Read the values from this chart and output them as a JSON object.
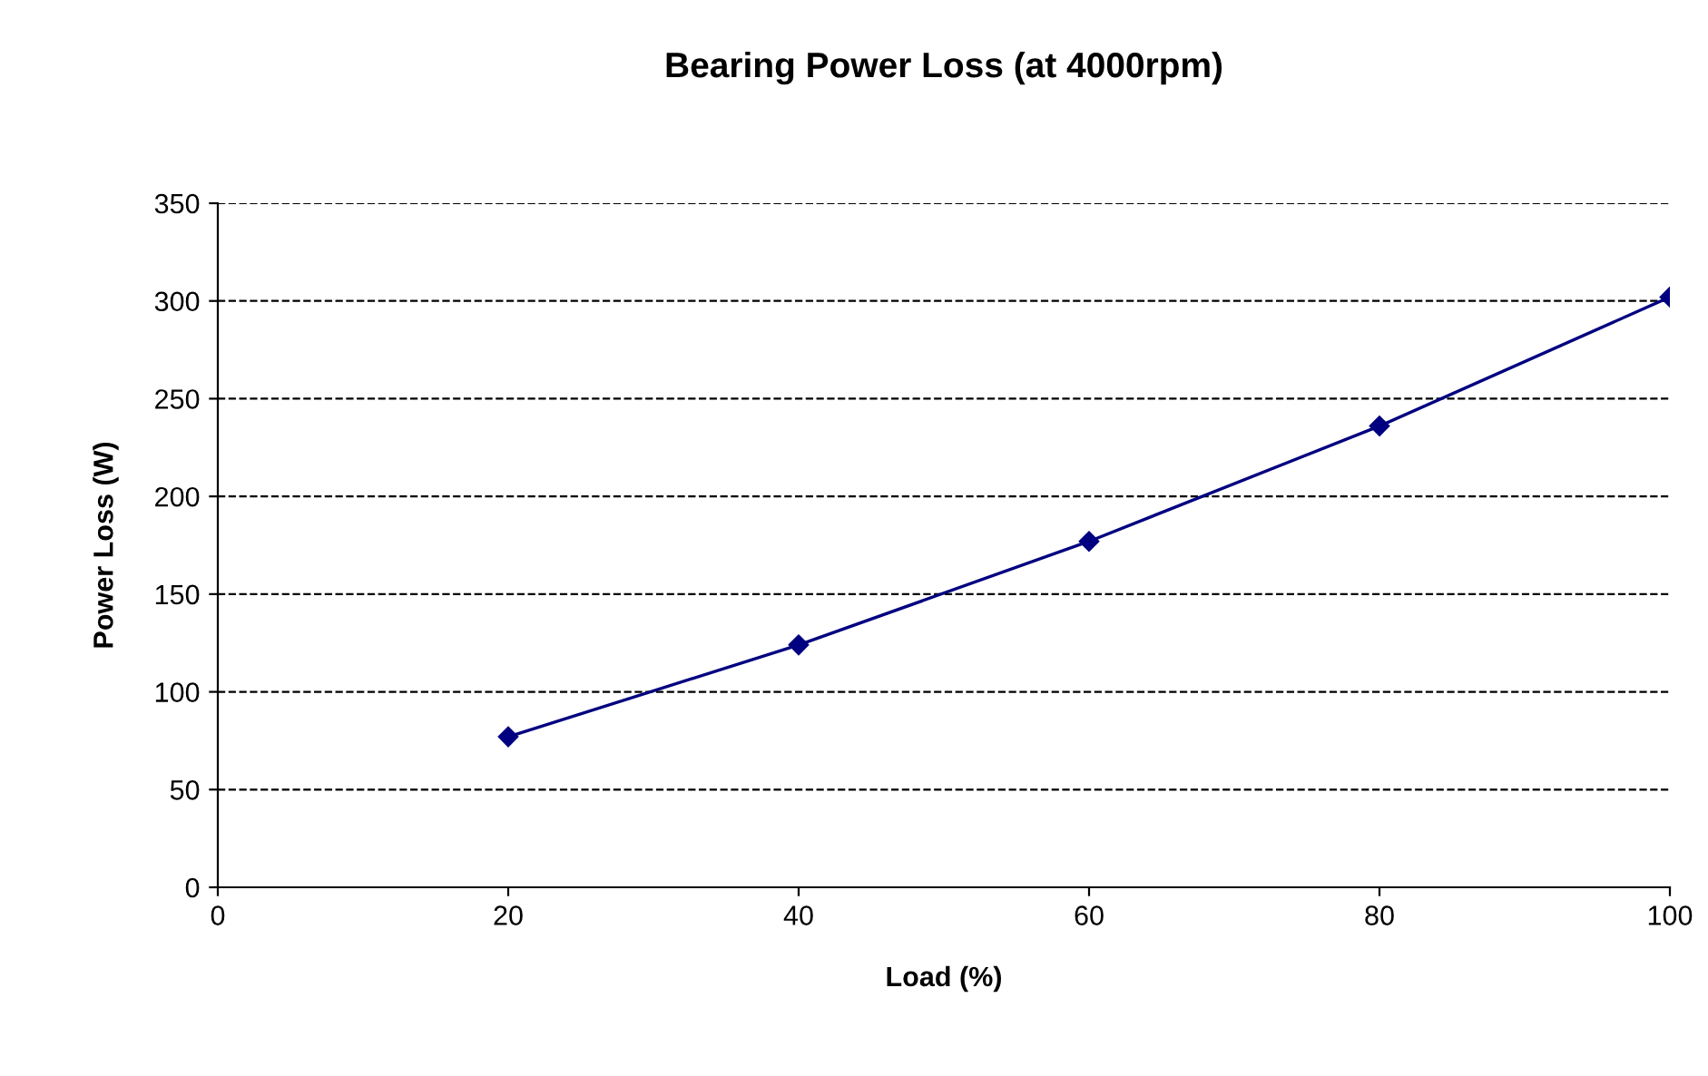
{
  "chart_data": {
    "type": "line",
    "title": "Bearing Power Loss (at 4000rpm)",
    "xlabel": "Load (%)",
    "ylabel": "Power Loss (W)",
    "x": [
      20,
      40,
      60,
      80,
      100
    ],
    "series": [
      {
        "color": "#000080",
        "values": [
          77,
          124,
          177,
          236,
          302
        ]
      }
    ],
    "xlim": [
      0,
      100
    ],
    "xticks": [
      0,
      20,
      40,
      60,
      80,
      100
    ],
    "ylim": [
      0,
      350
    ],
    "yticks": [
      0,
      50,
      100,
      150,
      200,
      250,
      300,
      350
    ],
    "grid": "y",
    "marker": "diamond",
    "line_style": "solid"
  }
}
